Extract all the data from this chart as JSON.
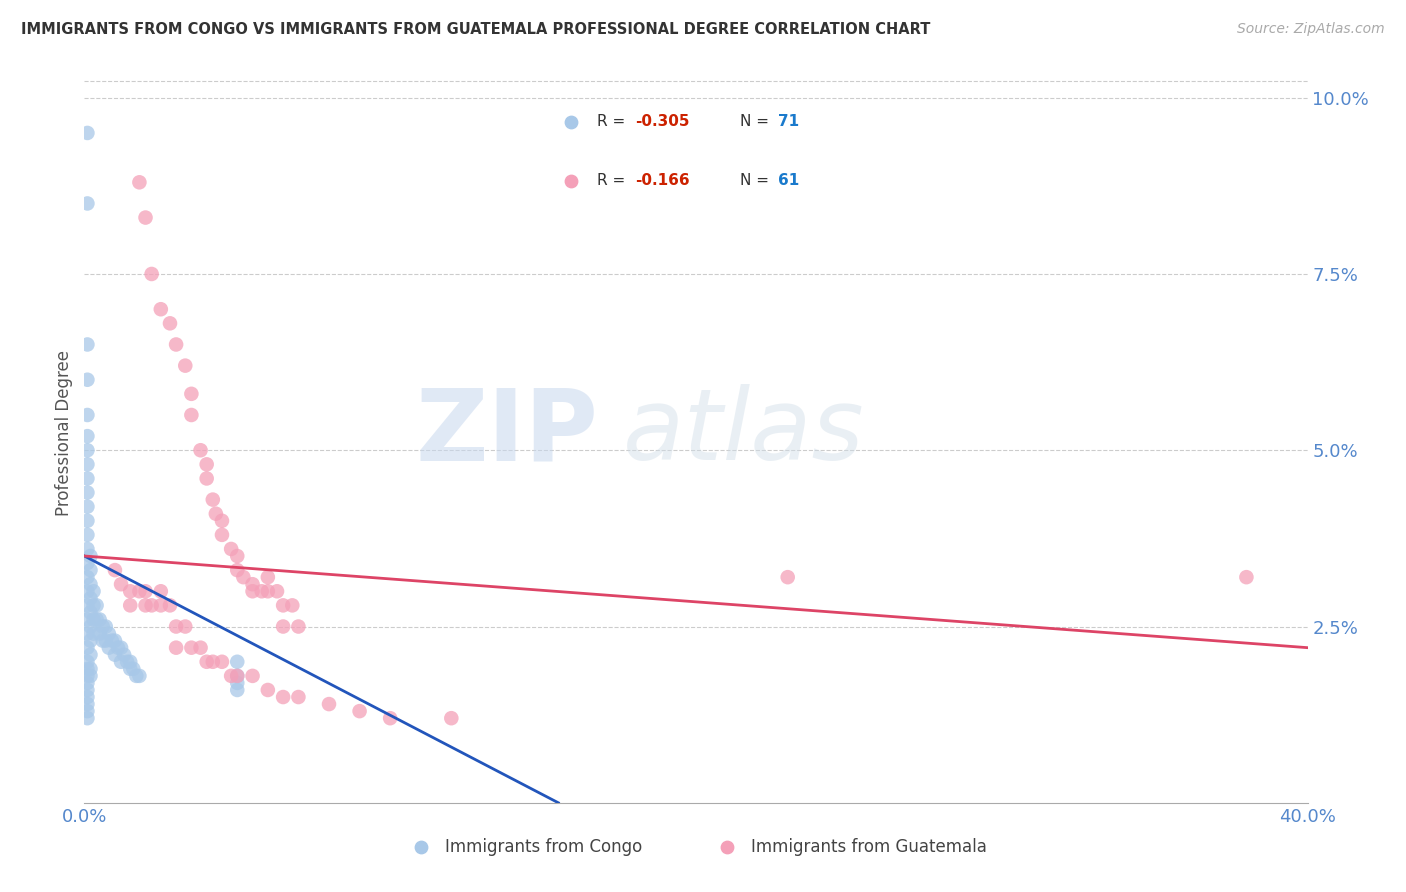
{
  "title": "IMMIGRANTS FROM CONGO VS IMMIGRANTS FROM GUATEMALA PROFESSIONAL DEGREE CORRELATION CHART",
  "source": "Source: ZipAtlas.com",
  "ylabel": "Professional Degree",
  "right_yticks": [
    "10.0%",
    "7.5%",
    "5.0%",
    "2.5%"
  ],
  "right_ytick_vals": [
    0.1,
    0.075,
    0.05,
    0.025
  ],
  "xlim": [
    0.0,
    0.4
  ],
  "ylim": [
    0.0,
    0.105
  ],
  "legend_R_congo": "-0.305",
  "legend_N_congo": "71",
  "legend_R_guatemala": "-0.166",
  "legend_N_guatemala": "61",
  "congo_color": "#a8c8e8",
  "guatemala_color": "#f4a0b8",
  "trend_congo_color": "#2255bb",
  "trend_guatemala_color": "#dd4466",
  "watermark_zip": "ZIP",
  "watermark_atlas": "atlas",
  "congo_x": [
    0.001,
    0.001,
    0.001,
    0.001,
    0.001,
    0.001,
    0.001,
    0.001,
    0.001,
    0.001,
    0.001,
    0.001,
    0.001,
    0.001,
    0.001,
    0.001,
    0.001,
    0.001,
    0.001,
    0.001,
    0.001,
    0.001,
    0.001,
    0.001,
    0.001,
    0.001,
    0.001,
    0.001,
    0.001,
    0.001,
    0.002,
    0.002,
    0.002,
    0.002,
    0.002,
    0.002,
    0.002,
    0.002,
    0.002,
    0.002,
    0.003,
    0.003,
    0.003,
    0.003,
    0.004,
    0.004,
    0.005,
    0.005,
    0.006,
    0.006,
    0.007,
    0.007,
    0.008,
    0.008,
    0.009,
    0.01,
    0.01,
    0.011,
    0.012,
    0.012,
    0.013,
    0.014,
    0.015,
    0.015,
    0.016,
    0.017,
    0.018,
    0.05,
    0.05,
    0.05,
    0.05
  ],
  "congo_y": [
    0.095,
    0.085,
    0.065,
    0.06,
    0.055,
    0.052,
    0.05,
    0.048,
    0.046,
    0.044,
    0.042,
    0.04,
    0.038,
    0.036,
    0.034,
    0.032,
    0.03,
    0.028,
    0.026,
    0.024,
    0.022,
    0.02,
    0.019,
    0.018,
    0.017,
    0.016,
    0.015,
    0.014,
    0.013,
    0.012,
    0.035,
    0.033,
    0.031,
    0.029,
    0.027,
    0.025,
    0.023,
    0.021,
    0.019,
    0.018,
    0.03,
    0.028,
    0.026,
    0.024,
    0.028,
    0.026,
    0.026,
    0.024,
    0.025,
    0.023,
    0.025,
    0.023,
    0.024,
    0.022,
    0.023,
    0.023,
    0.021,
    0.022,
    0.022,
    0.02,
    0.021,
    0.02,
    0.02,
    0.019,
    0.019,
    0.018,
    0.018,
    0.02,
    0.018,
    0.017,
    0.016
  ],
  "guatemala_x": [
    0.018,
    0.02,
    0.022,
    0.025,
    0.028,
    0.03,
    0.033,
    0.035,
    0.035,
    0.038,
    0.04,
    0.04,
    0.042,
    0.043,
    0.045,
    0.045,
    0.048,
    0.05,
    0.05,
    0.052,
    0.055,
    0.055,
    0.058,
    0.06,
    0.06,
    0.063,
    0.065,
    0.065,
    0.068,
    0.07,
    0.01,
    0.012,
    0.015,
    0.015,
    0.018,
    0.02,
    0.02,
    0.022,
    0.025,
    0.025,
    0.028,
    0.03,
    0.03,
    0.033,
    0.035,
    0.038,
    0.04,
    0.042,
    0.045,
    0.048,
    0.05,
    0.055,
    0.06,
    0.065,
    0.07,
    0.08,
    0.09,
    0.1,
    0.23,
    0.38,
    0.12
  ],
  "guatemala_y": [
    0.088,
    0.083,
    0.075,
    0.07,
    0.068,
    0.065,
    0.062,
    0.058,
    0.055,
    0.05,
    0.048,
    0.046,
    0.043,
    0.041,
    0.04,
    0.038,
    0.036,
    0.035,
    0.033,
    0.032,
    0.031,
    0.03,
    0.03,
    0.03,
    0.032,
    0.03,
    0.028,
    0.025,
    0.028,
    0.025,
    0.033,
    0.031,
    0.03,
    0.028,
    0.03,
    0.03,
    0.028,
    0.028,
    0.03,
    0.028,
    0.028,
    0.025,
    0.022,
    0.025,
    0.022,
    0.022,
    0.02,
    0.02,
    0.02,
    0.018,
    0.018,
    0.018,
    0.016,
    0.015,
    0.015,
    0.014,
    0.013,
    0.012,
    0.032,
    0.032,
    0.012
  ],
  "congo_trend_x0": 0.0,
  "congo_trend_y0": 0.035,
  "congo_trend_x1": 0.155,
  "congo_trend_y1": 0.0,
  "guat_trend_x0": 0.0,
  "guat_trend_y0": 0.035,
  "guat_trend_x1": 0.4,
  "guat_trend_y1": 0.022
}
